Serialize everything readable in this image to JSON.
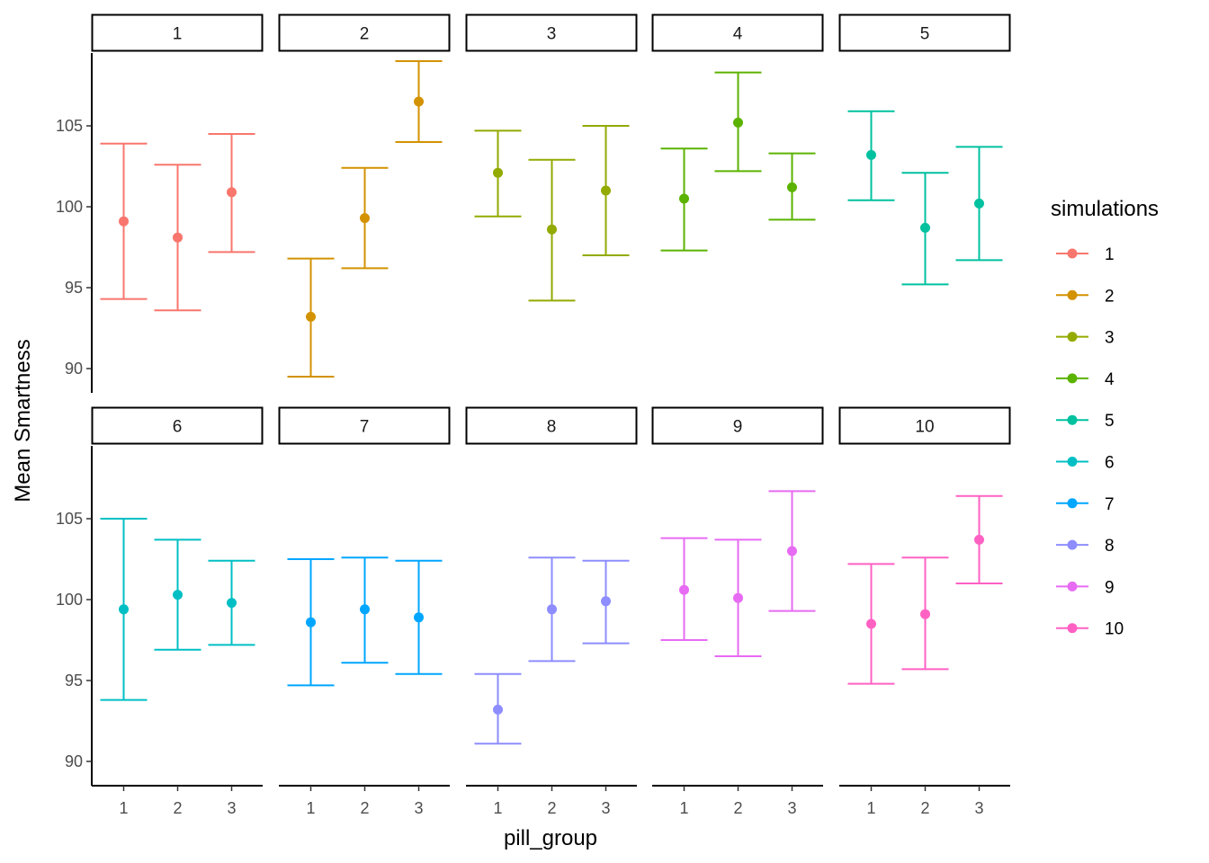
{
  "chart_data": {
    "type": "scatter",
    "subtype": "point-with-errorbars, faceted",
    "title": "",
    "xlabel": "pill_group",
    "ylabel": "Mean Smartness",
    "x_categories": [
      "1",
      "2",
      "3"
    ],
    "ylim": [
      88.5,
      109.5
    ],
    "yticks": [
      90,
      95,
      100,
      105
    ],
    "grid": false,
    "legend": {
      "title": "simulations",
      "position": "right"
    },
    "facets": [
      {
        "label": "1",
        "color": "#F8766D",
        "points": [
          {
            "x": "1",
            "y": 99.1,
            "ymin": 94.3,
            "ymax": 103.9
          },
          {
            "x": "2",
            "y": 98.1,
            "ymin": 93.6,
            "ymax": 102.6
          },
          {
            "x": "3",
            "y": 100.9,
            "ymin": 97.2,
            "ymax": 104.5
          }
        ]
      },
      {
        "label": "2",
        "color": "#D39200",
        "points": [
          {
            "x": "1",
            "y": 93.2,
            "ymin": 89.5,
            "ymax": 96.8
          },
          {
            "x": "2",
            "y": 99.3,
            "ymin": 96.2,
            "ymax": 102.4
          },
          {
            "x": "3",
            "y": 106.5,
            "ymin": 104.0,
            "ymax": 109.0
          }
        ]
      },
      {
        "label": "3",
        "color": "#93AA00",
        "points": [
          {
            "x": "1",
            "y": 102.1,
            "ymin": 99.4,
            "ymax": 104.7
          },
          {
            "x": "2",
            "y": 98.6,
            "ymin": 94.2,
            "ymax": 102.9
          },
          {
            "x": "3",
            "y": 101.0,
            "ymin": 97.0,
            "ymax": 105.0
          }
        ]
      },
      {
        "label": "4",
        "color": "#5BB300",
        "points": [
          {
            "x": "1",
            "y": 100.5,
            "ymin": 97.3,
            "ymax": 103.6
          },
          {
            "x": "2",
            "y": 105.2,
            "ymin": 102.2,
            "ymax": 108.3
          },
          {
            "x": "3",
            "y": 101.2,
            "ymin": 99.2,
            "ymax": 103.3
          }
        ]
      },
      {
        "label": "5",
        "color": "#00C19F",
        "points": [
          {
            "x": "1",
            "y": 103.2,
            "ymin": 100.4,
            "ymax": 105.9
          },
          {
            "x": "2",
            "y": 98.7,
            "ymin": 95.2,
            "ymax": 102.1
          },
          {
            "x": "3",
            "y": 100.2,
            "ymin": 96.7,
            "ymax": 103.7
          }
        ]
      },
      {
        "label": "6",
        "color": "#00BFC4",
        "points": [
          {
            "x": "1",
            "y": 99.4,
            "ymin": 93.8,
            "ymax": 105.0
          },
          {
            "x": "2",
            "y": 100.3,
            "ymin": 96.9,
            "ymax": 103.7
          },
          {
            "x": "3",
            "y": 99.8,
            "ymin": 97.2,
            "ymax": 102.4
          }
        ]
      },
      {
        "label": "7",
        "color": "#00A6FF",
        "points": [
          {
            "x": "1",
            "y": 98.6,
            "ymin": 94.7,
            "ymax": 102.5
          },
          {
            "x": "2",
            "y": 99.4,
            "ymin": 96.1,
            "ymax": 102.6
          },
          {
            "x": "3",
            "y": 98.9,
            "ymin": 95.4,
            "ymax": 102.4
          }
        ]
      },
      {
        "label": "8",
        "color": "#8D8DFF",
        "points": [
          {
            "x": "1",
            "y": 93.2,
            "ymin": 91.1,
            "ymax": 95.4
          },
          {
            "x": "2",
            "y": 99.4,
            "ymin": 96.2,
            "ymax": 102.6
          },
          {
            "x": "3",
            "y": 99.9,
            "ymin": 97.3,
            "ymax": 102.4
          }
        ]
      },
      {
        "label": "9",
        "color": "#E76BF3",
        "points": [
          {
            "x": "1",
            "y": 100.6,
            "ymin": 97.5,
            "ymax": 103.8
          },
          {
            "x": "2",
            "y": 100.1,
            "ymin": 96.5,
            "ymax": 103.7
          },
          {
            "x": "3",
            "y": 103.0,
            "ymin": 99.3,
            "ymax": 106.7
          }
        ]
      },
      {
        "label": "10",
        "color": "#FF61C3",
        "points": [
          {
            "x": "1",
            "y": 98.5,
            "ymin": 94.8,
            "ymax": 102.2
          },
          {
            "x": "2",
            "y": 99.1,
            "ymin": 95.7,
            "ymax": 102.6
          },
          {
            "x": "3",
            "y": 103.7,
            "ymin": 101.0,
            "ymax": 106.4
          }
        ]
      }
    ]
  }
}
